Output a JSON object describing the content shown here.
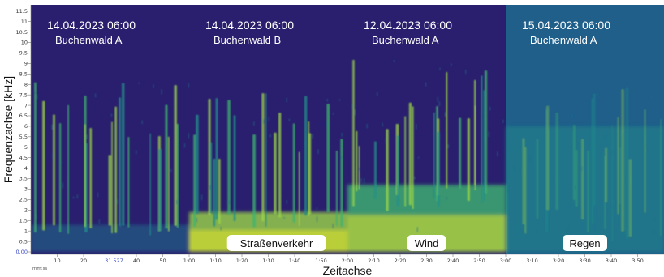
{
  "chart_data": {
    "type": "heatmap",
    "title": "",
    "xlabel": "Zeitachse",
    "ylabel": "Frequenzachse [kHz]",
    "x_unit_label": "mm:ss",
    "xlim_seconds": [
      0,
      240
    ],
    "ylim_khz": [
      0,
      11.8
    ],
    "x_ticks": [
      "10",
      "20",
      "31.527",
      "40",
      "50",
      "1:00",
      "1:10",
      "1:20",
      "1:30",
      "1:40",
      "1:50",
      "2:00",
      "2:10",
      "2:20",
      "2:30",
      "2:40",
      "2:50",
      "3:00",
      "3:10",
      "3:20",
      "3:30",
      "3:40",
      "3:50"
    ],
    "y_ticks": [
      "0.00",
      "0.5",
      "1",
      "1.5",
      "2",
      "2.5",
      "3",
      "3.5",
      "4",
      "4.5",
      "5",
      "5.5",
      "6",
      "6.5",
      "7",
      "7.5",
      "8",
      "8.5",
      "9",
      "9.5",
      "10",
      "10.5",
      "11",
      "11.5"
    ],
    "colormap": [
      "#2a1f6e",
      "#22448c",
      "#1f6e8c",
      "#23908a",
      "#3fb46f",
      "#9bd448",
      "#e8e826"
    ],
    "panels": [
      {
        "date": "14.04.2023 06:00",
        "location": "Buchenwald A",
        "noise_label": "",
        "start_s": 0,
        "end_s": 60,
        "noise_band_khz": [
          0,
          1.3
        ],
        "activity_max_khz": 8.4
      },
      {
        "date": "14.04.2023 06:00",
        "location": "Buchenwald B",
        "noise_label": "Straßenverkehr",
        "start_s": 60,
        "end_s": 120,
        "noise_band_khz": [
          0,
          1.9
        ],
        "activity_max_khz": 7.6
      },
      {
        "date": "12.04.2023 06:00",
        "location": "Buchenwald A",
        "noise_label": "Wind",
        "start_s": 120,
        "end_s": 180,
        "noise_band_khz": [
          0,
          3.2
        ],
        "activity_max_khz": 9.2
      },
      {
        "date": "15.04.2023 06:00",
        "location": "Buchenwald A",
        "noise_label": "Regen",
        "start_s": 180,
        "end_s": 240,
        "noise_band_khz": [
          0,
          11.8
        ],
        "activity_max_khz": 8.0
      }
    ]
  }
}
